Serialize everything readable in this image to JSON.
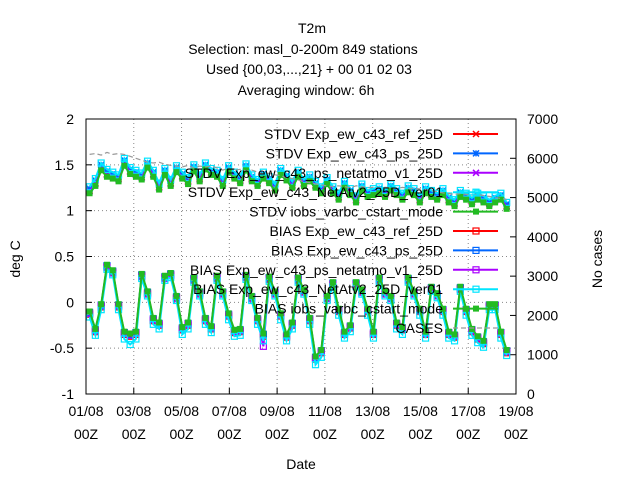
{
  "chart_data": {
    "type": "line",
    "title": "T2m",
    "subtitle_lines": [
      "Selection: masl_0-200m    849 stations",
      "Used {00,03,...,21} + 00 01 02 03",
      "Averaging window:  6h"
    ],
    "xlabel": "Date",
    "ylabel": "deg C",
    "y2label": "No cases",
    "ylim": [
      -1,
      2
    ],
    "y2lim": [
      0,
      7000
    ],
    "yticks": [
      "-1",
      "-0.5",
      "0",
      "0.5",
      "1",
      "1.5",
      "2"
    ],
    "y2ticks": [
      "0",
      "1000",
      "2000",
      "3000",
      "4000",
      "5000",
      "6000",
      "7000"
    ],
    "xticks_top": [
      "01/08",
      "03/08",
      "05/08",
      "07/08",
      "09/08",
      "11/08",
      "13/08",
      "15/08",
      "17/08",
      "19/08"
    ],
    "xticks_bottom": [
      "00Z",
      "00Z",
      "00Z",
      "00Z",
      "00Z",
      "00Z",
      "00Z",
      "00Z",
      "00Z",
      "00Z"
    ],
    "x_range_days": [
      0,
      18
    ],
    "grid": true,
    "legend_position": "top-right, inside plot",
    "series": [
      {
        "name": "STDV Exp_ew_c43_ref_25D",
        "color": "#ff0000",
        "marker": "x-cross",
        "values": [
          1.22,
          1.3,
          1.47,
          1.4,
          1.38,
          1.35,
          1.52,
          1.43,
          1.4,
          1.37,
          1.5,
          1.4,
          1.26,
          1.42,
          1.3,
          1.45,
          1.38,
          1.32,
          1.46,
          1.35,
          1.48,
          1.42,
          1.4,
          1.3,
          1.45,
          1.38,
          1.33,
          1.47,
          1.35,
          1.3,
          1.38,
          1.33,
          1.25,
          1.42,
          1.36,
          1.28,
          1.4,
          1.3,
          1.35,
          1.28,
          1.22,
          1.32,
          1.22,
          1.15,
          1.28,
          1.2,
          1.12,
          1.25,
          1.18,
          1.2,
          1.22,
          1.18,
          1.25,
          1.2,
          1.15,
          1.23,
          1.2,
          1.12,
          1.22,
          1.18,
          1.15,
          1.2,
          1.12,
          1.08,
          1.18,
          1.15,
          1.1,
          1.15,
          1.12,
          1.08,
          1.12,
          1.15,
          1.05
        ]
      },
      {
        "name": "STDV Exp_ew_c43_ps_25D",
        "color": "#0066ff",
        "marker": "star",
        "values": [
          1.24,
          1.33,
          1.5,
          1.43,
          1.4,
          1.37,
          1.55,
          1.45,
          1.42,
          1.39,
          1.52,
          1.42,
          1.28,
          1.44,
          1.32,
          1.47,
          1.4,
          1.34,
          1.48,
          1.37,
          1.5,
          1.44,
          1.42,
          1.32,
          1.47,
          1.4,
          1.35,
          1.49,
          1.37,
          1.32,
          1.4,
          1.35,
          1.27,
          1.44,
          1.38,
          1.3,
          1.42,
          1.32,
          1.37,
          1.3,
          1.24,
          1.34,
          1.24,
          1.17,
          1.3,
          1.22,
          1.14,
          1.27,
          1.2,
          1.22,
          1.24,
          1.2,
          1.27,
          1.22,
          1.17,
          1.25,
          1.22,
          1.14,
          1.24,
          1.2,
          1.17,
          1.22,
          1.14,
          1.1,
          1.2,
          1.17,
          1.12,
          1.17,
          1.14,
          1.1,
          1.14,
          1.17,
          1.07
        ]
      },
      {
        "name": "STDV Exp_ew_c43_ps_netatmo_v1_25D",
        "color": "#aa00ff",
        "marker": "x-cross",
        "values": [
          1.21,
          1.29,
          1.46,
          1.39,
          1.37,
          1.34,
          1.51,
          1.42,
          1.39,
          1.36,
          1.49,
          1.39,
          1.25,
          1.41,
          1.29,
          1.44,
          1.37,
          1.31,
          1.45,
          1.34,
          1.47,
          1.41,
          1.39,
          1.29,
          1.44,
          1.37,
          1.32,
          1.46,
          1.34,
          1.29,
          1.37,
          1.32,
          1.24,
          1.41,
          1.35,
          1.27,
          1.39,
          1.29,
          1.34,
          1.27,
          1.21,
          1.31,
          1.21,
          1.14,
          1.27,
          1.19,
          1.11,
          1.24,
          1.17,
          1.19,
          1.21,
          1.17,
          1.24,
          1.19,
          1.14,
          1.22,
          1.19,
          1.11,
          1.21,
          1.17,
          1.14,
          1.19,
          1.11,
          1.07,
          1.17,
          1.14,
          1.09,
          1.14,
          1.11,
          1.07,
          1.11,
          1.14,
          1.04
        ]
      },
      {
        "name": "STDV Exp_ew_c43_NetAtv2_25D_ver01",
        "color": "#00e5ff",
        "marker": "square",
        "values": [
          1.26,
          1.35,
          1.52,
          1.45,
          1.42,
          1.39,
          1.57,
          1.47,
          1.44,
          1.41,
          1.54,
          1.44,
          1.3,
          1.46,
          1.34,
          1.49,
          1.42,
          1.36,
          1.5,
          1.39,
          1.52,
          1.46,
          1.44,
          1.34,
          1.49,
          1.42,
          1.37,
          1.51,
          1.39,
          1.34,
          1.42,
          1.37,
          1.29,
          1.46,
          1.4,
          1.32,
          1.44,
          1.34,
          1.39,
          1.32,
          1.26,
          1.36,
          1.26,
          1.19,
          1.32,
          1.24,
          1.16,
          1.29,
          1.22,
          1.24,
          1.26,
          1.22,
          1.29,
          1.24,
          1.19,
          1.27,
          1.24,
          1.16,
          1.26,
          1.22,
          1.19,
          1.24,
          1.16,
          1.12,
          1.22,
          1.19,
          1.14,
          1.19,
          1.16,
          1.12,
          1.16,
          1.19,
          1.09
        ]
      },
      {
        "name": "STDV iobs_varbc_cstart_mode",
        "color": "#22bb22",
        "marker": "filled-square",
        "values": [
          1.19,
          1.27,
          1.44,
          1.37,
          1.35,
          1.32,
          1.49,
          1.4,
          1.37,
          1.34,
          1.47,
          1.37,
          1.23,
          1.39,
          1.27,
          1.42,
          1.35,
          1.29,
          1.43,
          1.32,
          1.45,
          1.39,
          1.37,
          1.27,
          1.42,
          1.35,
          1.3,
          1.44,
          1.32,
          1.27,
          1.35,
          1.3,
          1.22,
          1.39,
          1.33,
          1.25,
          1.37,
          1.27,
          1.32,
          1.25,
          1.19,
          1.29,
          1.19,
          1.12,
          1.25,
          1.17,
          1.09,
          1.22,
          1.15,
          1.17,
          1.19,
          1.15,
          1.22,
          1.17,
          1.12,
          1.2,
          1.17,
          1.09,
          1.19,
          1.15,
          1.12,
          1.17,
          1.09,
          1.05,
          1.15,
          1.12,
          1.07,
          1.12,
          1.09,
          1.05,
          1.09,
          1.12,
          1.02
        ]
      },
      {
        "name": "BIAS Exp_ew_c43_ref_25D",
        "color": "#ff0000",
        "marker": "open-square",
        "values": [
          -0.13,
          -0.32,
          -0.05,
          0.39,
          0.33,
          -0.05,
          -0.35,
          -0.37,
          -0.35,
          0.29,
          0.1,
          -0.2,
          -0.25,
          0.27,
          0.3,
          0.05,
          -0.3,
          -0.25,
          0.25,
          0.1,
          -0.2,
          -0.29,
          0.27,
          0.1,
          -0.15,
          -0.33,
          -0.32,
          0.28,
          0.05,
          -0.2,
          -0.37,
          0.26,
          0.1,
          -0.15,
          -0.38,
          -0.25,
          0.25,
          0.12,
          -0.2,
          -0.62,
          -0.55,
          0.05,
          0.2,
          -0.1,
          -0.35,
          -0.28,
          0.2,
          0.12,
          -0.1,
          -0.35,
          0.25,
          0.1,
          0.05,
          -0.25,
          -0.3,
          0.25,
          0.1,
          -0.1,
          -0.35,
          0.15,
          0.08,
          -0.1,
          -0.35,
          -0.38,
          0.15,
          -0.1,
          -0.32,
          -0.4,
          -0.45,
          -0.05,
          -0.05,
          -0.35,
          -0.55
        ]
      },
      {
        "name": "BIAS Exp_ew_c43_ps_25D",
        "color": "#0066ff",
        "marker": "open-square",
        "values": [
          -0.11,
          -0.3,
          -0.03,
          0.4,
          0.34,
          -0.03,
          -0.33,
          -0.35,
          -0.33,
          0.3,
          0.11,
          -0.18,
          -0.23,
          0.28,
          0.31,
          0.06,
          -0.28,
          -0.23,
          0.26,
          0.11,
          -0.18,
          -0.27,
          0.28,
          0.11,
          -0.13,
          -0.31,
          -0.3,
          0.29,
          0.06,
          -0.18,
          -0.35,
          0.27,
          0.11,
          -0.13,
          -0.36,
          -0.23,
          0.26,
          0.13,
          -0.18,
          -0.6,
          -0.53,
          0.06,
          0.21,
          -0.08,
          -0.33,
          -0.26,
          0.21,
          0.13,
          -0.08,
          -0.33,
          0.26,
          0.11,
          0.06,
          -0.23,
          -0.28,
          0.26,
          0.11,
          -0.08,
          -0.33,
          0.16,
          0.09,
          -0.08,
          -0.33,
          -0.36,
          0.16,
          -0.08,
          -0.3,
          -0.38,
          -0.43,
          -0.03,
          -0.03,
          -0.33,
          -0.53
        ]
      },
      {
        "name": "BIAS Exp_ew_c43_ps_netatmo_v1_25D",
        "color": "#aa00ff",
        "marker": "open-square",
        "values": [
          -0.12,
          -0.31,
          -0.04,
          0.38,
          0.32,
          -0.04,
          -0.34,
          -0.36,
          -0.34,
          0.28,
          0.09,
          -0.19,
          -0.24,
          0.26,
          0.29,
          0.04,
          -0.29,
          -0.24,
          0.24,
          0.09,
          -0.19,
          -0.28,
          0.26,
          0.09,
          -0.14,
          -0.32,
          -0.31,
          0.27,
          0.04,
          -0.19,
          -0.48,
          0.25,
          0.09,
          -0.14,
          -0.37,
          -0.24,
          0.24,
          0.11,
          -0.19,
          -0.61,
          -0.54,
          0.04,
          0.19,
          -0.09,
          -0.34,
          -0.27,
          0.19,
          0.11,
          -0.09,
          -0.34,
          0.24,
          0.09,
          0.04,
          -0.24,
          -0.29,
          0.24,
          0.09,
          -0.09,
          -0.34,
          0.14,
          0.07,
          -0.09,
          -0.34,
          -0.37,
          0.14,
          -0.09,
          -0.31,
          -0.39,
          -0.44,
          -0.04,
          -0.04,
          -0.34,
          -0.54
        ]
      },
      {
        "name": "BIAS Exp_ew_c43_NetAtv2_25D_ver01",
        "color": "#00e5ff",
        "marker": "open-square",
        "values": [
          -0.16,
          -0.36,
          -0.08,
          0.36,
          0.3,
          -0.08,
          -0.4,
          -0.46,
          -0.4,
          0.26,
          0.07,
          -0.24,
          -0.29,
          0.24,
          0.27,
          0.02,
          -0.35,
          -0.29,
          0.22,
          0.07,
          -0.24,
          -0.33,
          0.24,
          0.07,
          -0.19,
          -0.37,
          -0.36,
          0.25,
          0.02,
          -0.24,
          -0.42,
          0.23,
          0.07,
          -0.19,
          -0.42,
          -0.29,
          0.22,
          0.09,
          -0.24,
          -0.68,
          -0.6,
          0.02,
          0.17,
          -0.14,
          -0.39,
          -0.32,
          0.17,
          0.09,
          -0.14,
          -0.39,
          0.22,
          0.07,
          0.02,
          -0.29,
          -0.35,
          0.22,
          0.07,
          -0.14,
          -0.39,
          0.12,
          0.05,
          -0.14,
          -0.39,
          -0.42,
          0.12,
          -0.14,
          -0.36,
          -0.44,
          -0.49,
          -0.08,
          -0.08,
          -0.39,
          -0.58
        ]
      },
      {
        "name": "BIAS iobs_varbc_cstart_mode",
        "color": "#22bb22",
        "marker": "filled-square",
        "values": [
          -0.1,
          -0.29,
          -0.02,
          0.41,
          0.35,
          -0.02,
          -0.32,
          -0.34,
          -0.32,
          0.31,
          0.12,
          -0.17,
          -0.22,
          0.29,
          0.32,
          0.07,
          -0.27,
          -0.22,
          0.27,
          0.12,
          -0.17,
          -0.26,
          0.29,
          0.12,
          -0.12,
          -0.3,
          -0.29,
          0.3,
          0.07,
          -0.17,
          -0.34,
          0.28,
          0.12,
          -0.12,
          -0.35,
          -0.22,
          0.27,
          0.14,
          -0.17,
          -0.59,
          -0.52,
          0.07,
          0.22,
          -0.07,
          -0.32,
          -0.25,
          0.22,
          0.14,
          -0.07,
          -0.32,
          0.27,
          0.12,
          0.07,
          -0.22,
          -0.27,
          0.27,
          0.12,
          -0.07,
          -0.32,
          0.17,
          0.1,
          -0.07,
          -0.32,
          -0.35,
          0.17,
          -0.07,
          -0.29,
          -0.37,
          -0.42,
          -0.02,
          -0.02,
          -0.32,
          -0.52
        ]
      },
      {
        "name": "CASES",
        "color": "#999999",
        "marker": "none",
        "dashed": true,
        "axis": "y2",
        "values": [
          6100,
          6120,
          6080,
          6150,
          6100,
          6120,
          6100,
          6050,
          6000,
          5950,
          5900,
          5880,
          5900,
          5850,
          5820,
          5800,
          5780,
          5820,
          5750,
          5800,
          5780,
          5800,
          5750,
          5700,
          5750,
          5700,
          5720,
          5680,
          5700,
          5650,
          5600,
          5620,
          5580,
          5560,
          5500,
          5480,
          5450,
          5400,
          5380,
          5350,
          5320,
          5300,
          5280,
          5300,
          5280,
          5250,
          5300,
          5280,
          5250,
          5260,
          5240,
          5260,
          5250,
          5230,
          5260,
          5240,
          5230,
          5220,
          5200,
          5180,
          5150,
          5120,
          5100,
          5080,
          5100,
          5080,
          5060,
          5080,
          5050,
          5030,
          5000,
          4980,
          4950
        ]
      }
    ]
  }
}
